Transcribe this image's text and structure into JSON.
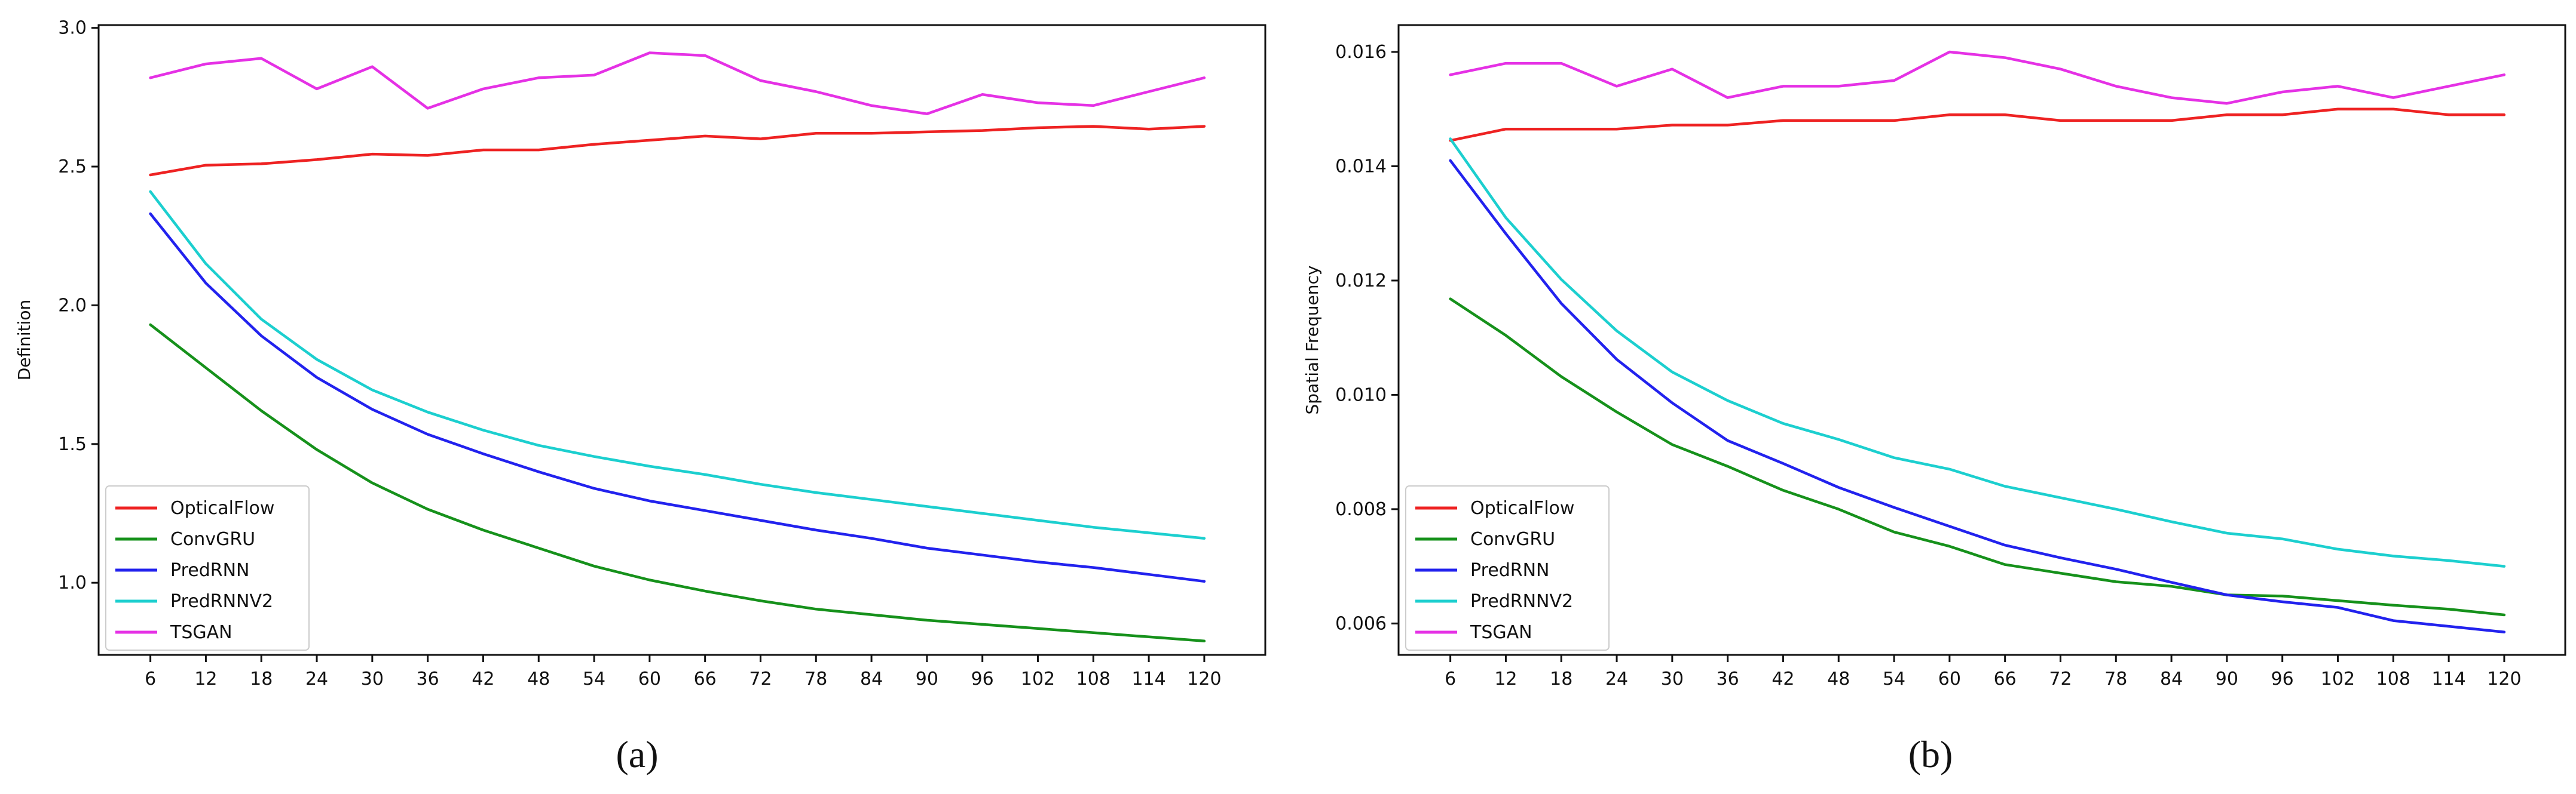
{
  "charts": [
    {
      "id": "a",
      "caption": "(a)",
      "ylabel": "Definition",
      "x": [
        6,
        12,
        18,
        24,
        30,
        36,
        42,
        48,
        54,
        60,
        66,
        72,
        78,
        84,
        90,
        96,
        102,
        108,
        114,
        120
      ],
      "xlim": [
        0.4,
        126.6
      ],
      "ylim": [
        0.74,
        3.01
      ],
      "yticks": [
        "1.0",
        "1.5",
        "2.0",
        "2.5",
        "3.0"
      ],
      "legend_position": "lower-left",
      "series": [
        {
          "name": "OpticalFlow",
          "color": "#ee2222",
          "values": [
            2.47,
            2.505,
            2.51,
            2.525,
            2.545,
            2.54,
            2.56,
            2.56,
            2.58,
            2.595,
            2.61,
            2.6,
            2.62,
            2.62,
            2.625,
            2.63,
            2.64,
            2.645,
            2.635,
            2.645
          ]
        },
        {
          "name": "ConvGRU",
          "color": "#16911b",
          "values": [
            1.93,
            1.775,
            1.62,
            1.48,
            1.36,
            1.265,
            1.19,
            1.125,
            1.06,
            1.01,
            0.97,
            0.935,
            0.905,
            0.885,
            0.865,
            0.85,
            0.835,
            0.82,
            0.805,
            0.79
          ]
        },
        {
          "name": "PredRNN",
          "color": "#2222ee",
          "values": [
            2.33,
            2.08,
            1.89,
            1.74,
            1.625,
            1.535,
            1.465,
            1.4,
            1.34,
            1.295,
            1.26,
            1.225,
            1.19,
            1.16,
            1.125,
            1.1,
            1.075,
            1.055,
            1.03,
            1.005
          ]
        },
        {
          "name": "PredRNNV2",
          "color": "#1ccfcf",
          "values": [
            2.41,
            2.15,
            1.95,
            1.805,
            1.695,
            1.615,
            1.55,
            1.495,
            1.455,
            1.42,
            1.39,
            1.355,
            1.325,
            1.3,
            1.275,
            1.25,
            1.225,
            1.2,
            1.18,
            1.16
          ]
        },
        {
          "name": "TSGAN",
          "color": "#e531e5",
          "values": [
            2.82,
            2.87,
            2.89,
            2.78,
            2.86,
            2.71,
            2.78,
            2.82,
            2.83,
            2.91,
            2.9,
            2.81,
            2.77,
            2.72,
            2.69,
            2.76,
            2.73,
            2.72,
            2.77,
            2.82
          ]
        }
      ]
    },
    {
      "id": "b",
      "caption": "(b)",
      "ylabel": "Spatial Frequency",
      "x": [
        6,
        12,
        18,
        24,
        30,
        36,
        42,
        48,
        54,
        60,
        66,
        72,
        78,
        84,
        90,
        96,
        102,
        108,
        114,
        120
      ],
      "xlim": [
        0.4,
        126.6
      ],
      "ylim": [
        0.00545,
        0.01647
      ],
      "yticks": [
        "0.006",
        "0.008",
        "0.010",
        "0.012",
        "0.014",
        "0.016"
      ],
      "legend_position": "lower-left",
      "series": [
        {
          "name": "OpticalFlow",
          "color": "#ee2222",
          "values": [
            0.01445,
            0.01465,
            0.01465,
            0.01465,
            0.01472,
            0.01472,
            0.0148,
            0.0148,
            0.0148,
            0.0149,
            0.0149,
            0.0148,
            0.0148,
            0.0148,
            0.0149,
            0.0149,
            0.015,
            0.015,
            0.0149,
            0.0149
          ]
        },
        {
          "name": "ConvGRU",
          "color": "#16911b",
          "values": [
            0.01168,
            0.01104,
            0.01032,
            0.0097,
            0.00913,
            0.00875,
            0.00833,
            0.008,
            0.0076,
            0.00735,
            0.00703,
            0.00688,
            0.00673,
            0.00665,
            0.0065,
            0.00648,
            0.0064,
            0.00632,
            0.00625,
            0.00615
          ]
        },
        {
          "name": "PredRNN",
          "color": "#2222ee",
          "values": [
            0.0141,
            0.01282,
            0.0116,
            0.01062,
            0.00986,
            0.0092,
            0.0088,
            0.00838,
            0.00803,
            0.0077,
            0.00737,
            0.00715,
            0.00695,
            0.00672,
            0.0065,
            0.00638,
            0.00628,
            0.00605,
            0.00595,
            0.00585
          ]
        },
        {
          "name": "PredRNNV2",
          "color": "#1ccfcf",
          "values": [
            0.01448,
            0.0131,
            0.01202,
            0.01112,
            0.0104,
            0.0099,
            0.0095,
            0.00922,
            0.0089,
            0.0087,
            0.0084,
            0.0082,
            0.008,
            0.00778,
            0.00758,
            0.00748,
            0.0073,
            0.00718,
            0.0071,
            0.007
          ]
        },
        {
          "name": "TSGAN",
          "color": "#e531e5",
          "values": [
            0.0156,
            0.0158,
            0.0158,
            0.0154,
            0.0157,
            0.0152,
            0.0154,
            0.0154,
            0.0155,
            0.016,
            0.0159,
            0.0157,
            0.0154,
            0.0152,
            0.0151,
            0.0153,
            0.0154,
            0.0152,
            0.0154,
            0.0156
          ]
        }
      ]
    }
  ],
  "chart_data": [
    {
      "type": "line",
      "title": "(a)",
      "xlabel": "",
      "ylabel": "Definition",
      "x": [
        6,
        12,
        18,
        24,
        30,
        36,
        42,
        48,
        54,
        60,
        66,
        72,
        78,
        84,
        90,
        96,
        102,
        108,
        114,
        120
      ],
      "ylim": [
        0.74,
        3.01
      ],
      "series": [
        {
          "name": "OpticalFlow",
          "values": [
            2.47,
            2.505,
            2.51,
            2.525,
            2.545,
            2.54,
            2.56,
            2.56,
            2.58,
            2.595,
            2.61,
            2.6,
            2.62,
            2.62,
            2.625,
            2.63,
            2.64,
            2.645,
            2.635,
            2.645
          ]
        },
        {
          "name": "ConvGRU",
          "values": [
            1.93,
            1.775,
            1.62,
            1.48,
            1.36,
            1.265,
            1.19,
            1.125,
            1.06,
            1.01,
            0.97,
            0.935,
            0.905,
            0.885,
            0.865,
            0.85,
            0.835,
            0.82,
            0.805,
            0.79
          ]
        },
        {
          "name": "PredRNN",
          "values": [
            2.33,
            2.08,
            1.89,
            1.74,
            1.625,
            1.535,
            1.465,
            1.4,
            1.34,
            1.295,
            1.26,
            1.225,
            1.19,
            1.16,
            1.125,
            1.1,
            1.075,
            1.055,
            1.03,
            1.005
          ]
        },
        {
          "name": "PredRNNV2",
          "values": [
            2.41,
            2.15,
            1.95,
            1.805,
            1.695,
            1.615,
            1.55,
            1.495,
            1.455,
            1.42,
            1.39,
            1.355,
            1.325,
            1.3,
            1.275,
            1.25,
            1.225,
            1.2,
            1.18,
            1.16
          ]
        },
        {
          "name": "TSGAN",
          "values": [
            2.82,
            2.87,
            2.89,
            2.78,
            2.86,
            2.71,
            2.78,
            2.82,
            2.83,
            2.91,
            2.9,
            2.81,
            2.77,
            2.72,
            2.69,
            2.76,
            2.73,
            2.72,
            2.77,
            2.82
          ]
        }
      ],
      "legend": "lower-left",
      "grid": false
    },
    {
      "type": "line",
      "title": "(b)",
      "xlabel": "",
      "ylabel": "Spatial Frequency",
      "x": [
        6,
        12,
        18,
        24,
        30,
        36,
        42,
        48,
        54,
        60,
        66,
        72,
        78,
        84,
        90,
        96,
        102,
        108,
        114,
        120
      ],
      "ylim": [
        0.00545,
        0.01647
      ],
      "series": [
        {
          "name": "OpticalFlow",
          "values": [
            0.01445,
            0.01465,
            0.01465,
            0.01465,
            0.01472,
            0.01472,
            0.0148,
            0.0148,
            0.0148,
            0.0149,
            0.0149,
            0.0148,
            0.0148,
            0.0148,
            0.0149,
            0.0149,
            0.015,
            0.015,
            0.0149,
            0.0149
          ]
        },
        {
          "name": "ConvGRU",
          "values": [
            0.01168,
            0.01104,
            0.01032,
            0.0097,
            0.00913,
            0.00875,
            0.00833,
            0.008,
            0.0076,
            0.00735,
            0.00703,
            0.00688,
            0.00673,
            0.00665,
            0.0065,
            0.00648,
            0.0064,
            0.00632,
            0.00625,
            0.00615
          ]
        },
        {
          "name": "PredRNN",
          "values": [
            0.0141,
            0.01282,
            0.0116,
            0.01062,
            0.00986,
            0.0092,
            0.0088,
            0.00838,
            0.00803,
            0.0077,
            0.00737,
            0.00715,
            0.00695,
            0.00672,
            0.0065,
            0.00638,
            0.00628,
            0.00605,
            0.00595,
            0.00585
          ]
        },
        {
          "name": "PredRNNV2",
          "values": [
            0.01448,
            0.0131,
            0.01202,
            0.01112,
            0.0104,
            0.0099,
            0.0095,
            0.00922,
            0.0089,
            0.0087,
            0.0084,
            0.0082,
            0.008,
            0.00778,
            0.00758,
            0.00748,
            0.0073,
            0.00718,
            0.0071,
            0.007
          ]
        },
        {
          "name": "TSGAN",
          "values": [
            0.0156,
            0.0158,
            0.0158,
            0.0154,
            0.0157,
            0.0152,
            0.0154,
            0.0154,
            0.0155,
            0.016,
            0.0159,
            0.0157,
            0.0154,
            0.0152,
            0.0151,
            0.0153,
            0.0154,
            0.0152,
            0.0154,
            0.0156
          ]
        }
      ],
      "legend": "lower-left",
      "grid": false
    }
  ]
}
